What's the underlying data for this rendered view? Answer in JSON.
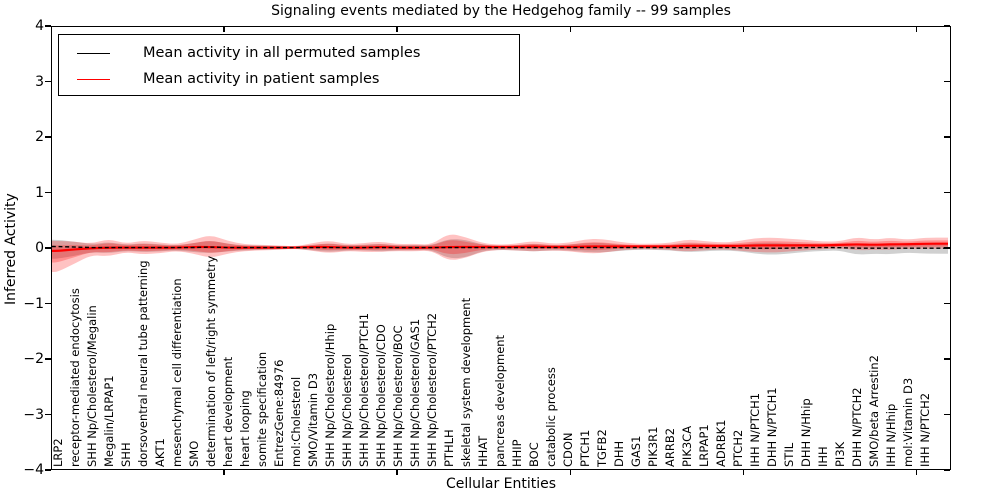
{
  "figure": {
    "title": "Signaling events mediated by the Hedgehog family -- 99 samples",
    "xlabel": "Cellular Entities",
    "ylabel": "Inferred Activity"
  },
  "legend": {
    "items": [
      {
        "label": "Mean activity in all permuted samples",
        "color": "#000000"
      },
      {
        "label": "Mean activity in patient samples",
        "color": "#ff0000"
      }
    ]
  },
  "colors": {
    "axis": "#000000",
    "background": "#ffffff",
    "patient_line": "#ff0000",
    "patient_band": "#ff0000",
    "permuted_line": "#000000",
    "permuted_band": "#555555"
  },
  "chart_data": {
    "type": "line",
    "title": "Signaling events mediated by the Hedgehog family -- 99 samples",
    "xlabel": "Cellular Entities",
    "ylabel": "Inferred Activity",
    "ylim": [
      -4,
      4
    ],
    "yticks": [
      -4,
      -3,
      -2,
      -1,
      0,
      1,
      2,
      3,
      4
    ],
    "xticks_unlabeled": [
      10,
      20,
      30,
      40,
      50
    ],
    "grid": false,
    "legend_position": "upper left",
    "categories": [
      "LRP2",
      "receptor-mediated endocytosis",
      "SHH Np/Cholesterol/Megalin",
      "Megalin/LRPAP1",
      "SHH",
      "dorsoventral neural tube patterning",
      "AKT1",
      "mesenchymal cell differentiation",
      "SMO",
      "determination of left/right symmetry",
      "heart development",
      "heart looping",
      "somite specification",
      "EntrezGene:84976",
      "mol:Cholesterol",
      "SMO/Vitamin D3",
      "SHH Np/Cholesterol/Hhip",
      "SHH Np/Cholesterol",
      "SHH Np/Cholesterol/PTCH1",
      "SHH Np/Cholesterol/CDO",
      "SHH Np/Cholesterol/BOC",
      "SHH Np/Cholesterol/GAS1",
      "SHH Np/Cholesterol/PTCH2",
      "PTHLH",
      "skeletal system development",
      "HHAT",
      "pancreas development",
      "HHIP",
      "BOC",
      "catabolic process",
      "CDON",
      "PTCH1",
      "TGFB2",
      "DHH",
      "GAS1",
      "PIK3R1",
      "ARRB2",
      "PIK3CA",
      "LRPAP1",
      "ADRBK1",
      "PTCH2",
      "IHH N/PTCH1",
      "DHH N/PTCH1",
      "STIL",
      "DHH N/Hhip",
      "IHH",
      "PI3K",
      "DHH N/PTCH2",
      "SMO/beta Arrestin2",
      "IHH N/Hhip",
      "mol:Vitamin D3",
      "IHH N/PTCH2"
    ],
    "series": [
      {
        "name": "Mean activity in all permuted samples",
        "color": "#000000",
        "line_style": "dashed",
        "values": [
          0.02,
          0.01,
          0,
          0,
          0,
          0,
          0,
          0,
          0,
          0.01,
          0,
          0,
          0,
          0,
          0,
          0,
          0,
          0,
          0,
          0,
          0,
          0,
          0,
          0,
          0,
          0,
          0,
          0,
          0,
          0,
          0,
          0,
          0,
          0,
          0,
          0,
          0,
          0,
          0,
          0,
          0,
          -0.01,
          -0.01,
          -0.01,
          0,
          0,
          0,
          -0.01,
          -0.01,
          -0.01,
          -0.01,
          -0.01
        ]
      },
      {
        "name": "Mean activity in patient samples",
        "color": "#ff0000",
        "line_style": "solid",
        "values": [
          -0.06,
          -0.03,
          -0.01,
          0,
          0,
          0,
          0,
          0,
          0.01,
          0.01,
          0,
          0,
          0,
          0,
          0,
          0.01,
          0.01,
          0,
          0,
          0.01,
          0,
          0,
          0,
          0.01,
          0.01,
          0.01,
          0.01,
          0.01,
          0.02,
          0.01,
          0.01,
          0.02,
          0.02,
          0.02,
          0.02,
          0.02,
          0.02,
          0.03,
          0.03,
          0.03,
          0.03,
          0.04,
          0.04,
          0.04,
          0.04,
          0.04,
          0.05,
          0.06,
          0.05,
          0.06,
          0.06,
          0.07
        ]
      }
    ],
    "bands": [
      {
        "name": "patient-samples-spread",
        "series": "Mean activity in patient samples",
        "color": "#ff0000",
        "alpha_outer": 0.24,
        "alpha_inner": 0.26,
        "inner_scale": 0.55,
        "up": [
          0.18,
          0.14,
          0.08,
          0.16,
          0.07,
          0.13,
          0.09,
          0.06,
          0.13,
          0.22,
          0.12,
          0.06,
          0.05,
          0.04,
          0.02,
          0.07,
          0.12,
          0.06,
          0.08,
          0.1,
          0.06,
          0.07,
          0.05,
          0.25,
          0.18,
          0.07,
          0.04,
          0.06,
          0.1,
          0.06,
          0.07,
          0.13,
          0.14,
          0.08,
          0.05,
          0.05,
          0.06,
          0.12,
          0.09,
          0.06,
          0.08,
          0.13,
          0.14,
          0.12,
          0.1,
          0.07,
          0.06,
          0.13,
          0.09,
          0.12,
          0.08,
          0.11
        ],
        "dn": [
          0.38,
          0.26,
          0.12,
          0.16,
          0.08,
          0.12,
          0.1,
          0.06,
          0.12,
          0.2,
          0.11,
          0.06,
          0.05,
          0.04,
          0.02,
          0.07,
          0.11,
          0.06,
          0.08,
          0.09,
          0.06,
          0.07,
          0.05,
          0.25,
          0.2,
          0.08,
          0.05,
          0.06,
          0.09,
          0.06,
          0.07,
          0.12,
          0.12,
          0.07,
          0.05,
          0.05,
          0.06,
          0.1,
          0.08,
          0.06,
          0.08,
          0.12,
          0.13,
          0.11,
          0.09,
          0.07,
          0.06,
          0.11,
          0.09,
          0.1,
          0.08,
          0.09
        ]
      },
      {
        "name": "permuted-samples-spread",
        "series": "Mean activity in all permuted samples",
        "color": "#555555",
        "alpha": 0.28,
        "up": [
          0.12,
          0.1,
          0.06,
          0.1,
          0.05,
          0.08,
          0.06,
          0.04,
          0.08,
          0.12,
          0.07,
          0.04,
          0.04,
          0.03,
          0.02,
          0.05,
          0.08,
          0.04,
          0.05,
          0.07,
          0.04,
          0.05,
          0.04,
          0.16,
          0.14,
          0.05,
          0.03,
          0.04,
          0.07,
          0.04,
          0.05,
          0.08,
          0.09,
          0.05,
          0.04,
          0.04,
          0.04,
          0.08,
          0.06,
          0.04,
          0.05,
          0.09,
          0.1,
          0.08,
          0.07,
          0.05,
          0.04,
          0.09,
          0.07,
          0.09,
          0.06,
          0.08
        ],
        "dn": [
          0.22,
          0.16,
          0.08,
          0.1,
          0.06,
          0.08,
          0.07,
          0.05,
          0.08,
          0.11,
          0.07,
          0.05,
          0.04,
          0.03,
          0.02,
          0.05,
          0.08,
          0.05,
          0.05,
          0.07,
          0.05,
          0.05,
          0.04,
          0.2,
          0.18,
          0.06,
          0.04,
          0.05,
          0.07,
          0.05,
          0.05,
          0.08,
          0.09,
          0.06,
          0.04,
          0.04,
          0.05,
          0.08,
          0.07,
          0.05,
          0.06,
          0.1,
          0.12,
          0.1,
          0.08,
          0.06,
          0.05,
          0.12,
          0.1,
          0.11,
          0.08,
          0.1
        ]
      }
    ]
  }
}
